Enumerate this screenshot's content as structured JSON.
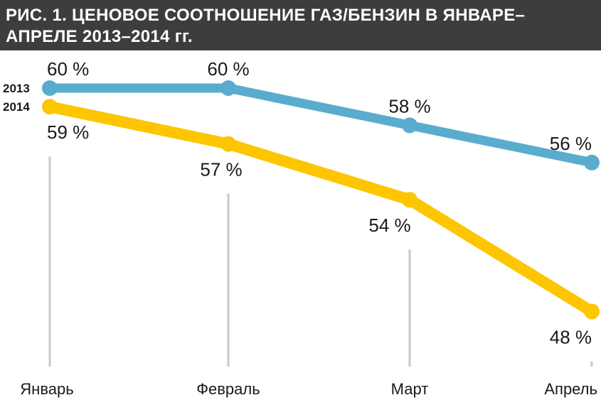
{
  "title": {
    "line1": "РИС. 1. ЦЕНОВОЕ СООТНОШЕНИЕ ГАЗ/БЕНЗИН В ЯНВАРЕ–",
    "line2": "АПРЕЛЕ 2013–2014 гг."
  },
  "chart_data": {
    "type": "line",
    "title": "РИС. 1. ЦЕНОВОЕ СООТНОШЕНИЕ ГАЗ/БЕНЗИН В ЯНВАРЕ–АПРЕЛЕ 2013–2014 гг.",
    "categories": [
      "Январь",
      "Февраль",
      "Март",
      "Апрель"
    ],
    "series": [
      {
        "name": "2013",
        "values": [
          60,
          60,
          58,
          56
        ],
        "labels": [
          "60 %",
          "60 %",
          "58 %",
          "56 %"
        ],
        "color": "#5aaccd"
      },
      {
        "name": "2014",
        "values": [
          59,
          57,
          54,
          48
        ],
        "labels": [
          "59 %",
          "57 %",
          "54 %",
          "48 %"
        ],
        "color": "#fdc600"
      }
    ],
    "unit": "%",
    "legend": "left, at line starts",
    "grid": false,
    "guide_color": "#c8c8c8"
  }
}
